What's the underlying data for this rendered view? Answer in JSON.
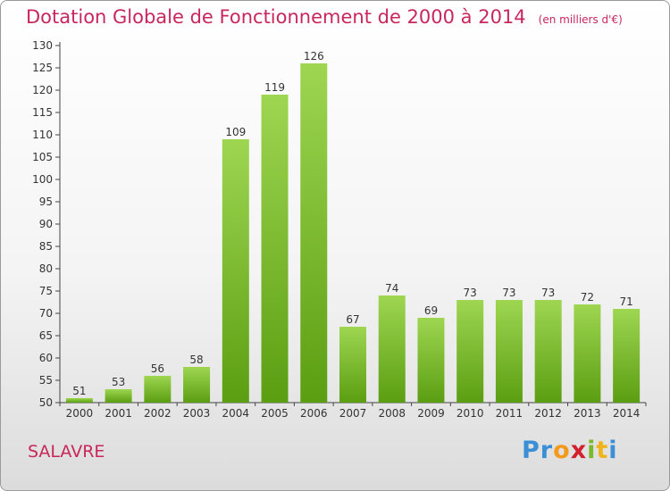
{
  "title": "Dotation Globale de Fonctionnement de 2000 à 2014",
  "unit": "(en milliers d'€)",
  "commune": "SALAVRE",
  "logo": {
    "letters": [
      "P",
      "r",
      "o",
      "x",
      "i",
      "t",
      "i"
    ],
    "colors": [
      "#3a8fd6",
      "#3a8fd6",
      "#f39a1c",
      "#d2212d",
      "#7ab929",
      "#f0b41a",
      "#3a8fd6"
    ]
  },
  "chart_data": {
    "type": "bar",
    "title": "Dotation Globale de Fonctionnement de 2000 à 2014",
    "subtitle": "(en milliers d'€)",
    "categories": [
      "2000",
      "2001",
      "2002",
      "2003",
      "2004",
      "2005",
      "2006",
      "2007",
      "2008",
      "2009",
      "2010",
      "2011",
      "2012",
      "2013",
      "2014"
    ],
    "values": [
      51,
      53,
      56,
      58,
      109,
      119,
      126,
      67,
      74,
      69,
      73,
      73,
      73,
      72,
      71
    ],
    "ylim": [
      50,
      130
    ],
    "yticks": [
      50,
      55,
      60,
      65,
      70,
      75,
      80,
      85,
      90,
      95,
      100,
      105,
      110,
      115,
      120,
      125,
      130
    ],
    "xlabel": "",
    "ylabel": "",
    "grid": false,
    "bar_color": "#7cc22e",
    "show_data_labels": true
  }
}
